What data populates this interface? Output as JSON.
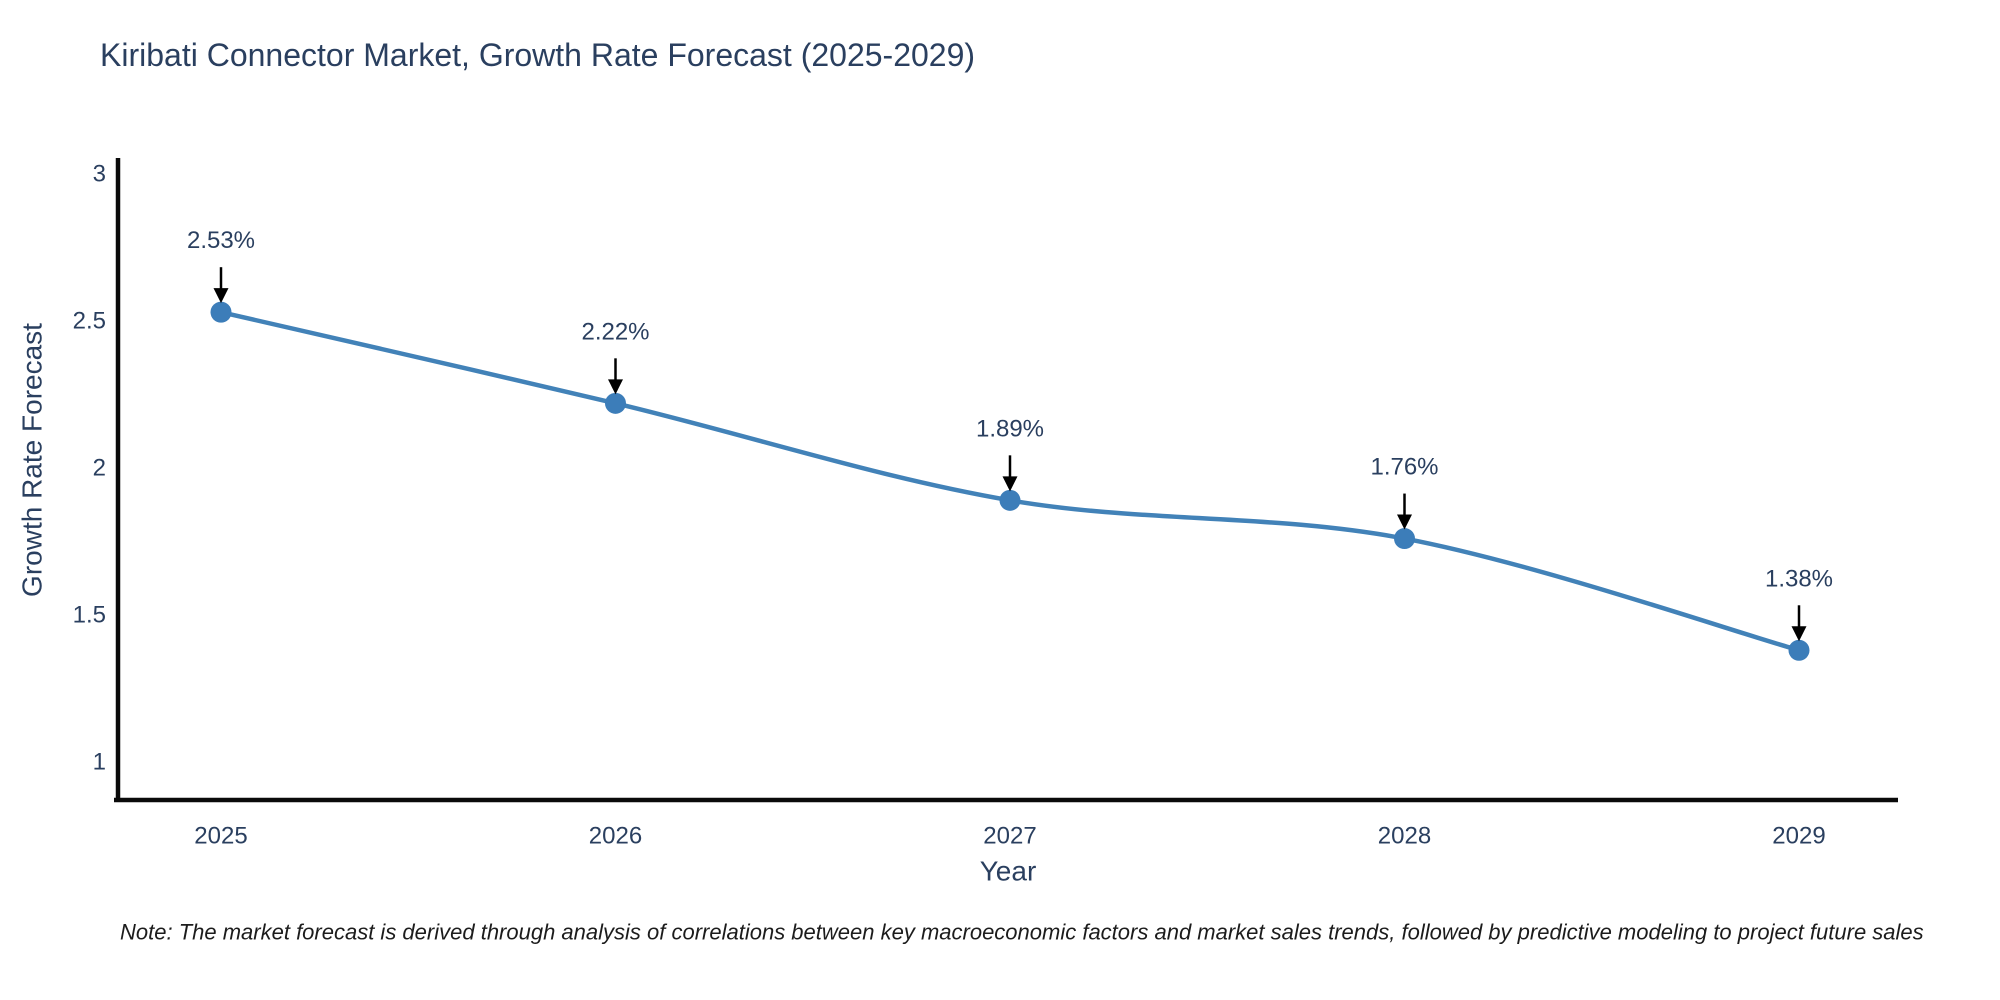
{
  "chart": {
    "title": "Kiribati Connector Market, Growth Rate Forecast (2025-2029)",
    "note": "Note: The market forecast is derived through analysis of correlations between key macroeconomic factors and market sales trends, followed by predictive modeling to project future sales",
    "colors": {
      "line": "#4282b8",
      "marker": "#3c7db9",
      "axis": "#0a0a0a",
      "arrow": "#000000",
      "heading_text": "#2a3f5f",
      "note_text": "#1c1c1c",
      "background": "#ffffff"
    }
  },
  "chart_data": {
    "type": "line",
    "title": "Kiribati Connector Market, Growth Rate Forecast (2025-2029)",
    "categories": [
      "2025",
      "2026",
      "2027",
      "2028",
      "2029"
    ],
    "x": [
      2025,
      2026,
      2027,
      2028,
      2029
    ],
    "values": [
      2.53,
      2.22,
      1.89,
      1.76,
      1.38
    ],
    "point_labels": [
      "2.53%",
      "2.22%",
      "1.89%",
      "1.76%",
      "1.38%"
    ],
    "xlabel": "Year",
    "ylabel": "Growth Rate Forecast",
    "yticks": [
      1,
      1.5,
      2,
      2.5,
      3
    ],
    "ylim": [
      0.87,
      3.05
    ],
    "xlim_years": [
      2024.74,
      2029.25
    ],
    "line_shape": "spline",
    "markers": true,
    "grid": false,
    "legend_position": "none",
    "annotations_arrow": "down"
  }
}
